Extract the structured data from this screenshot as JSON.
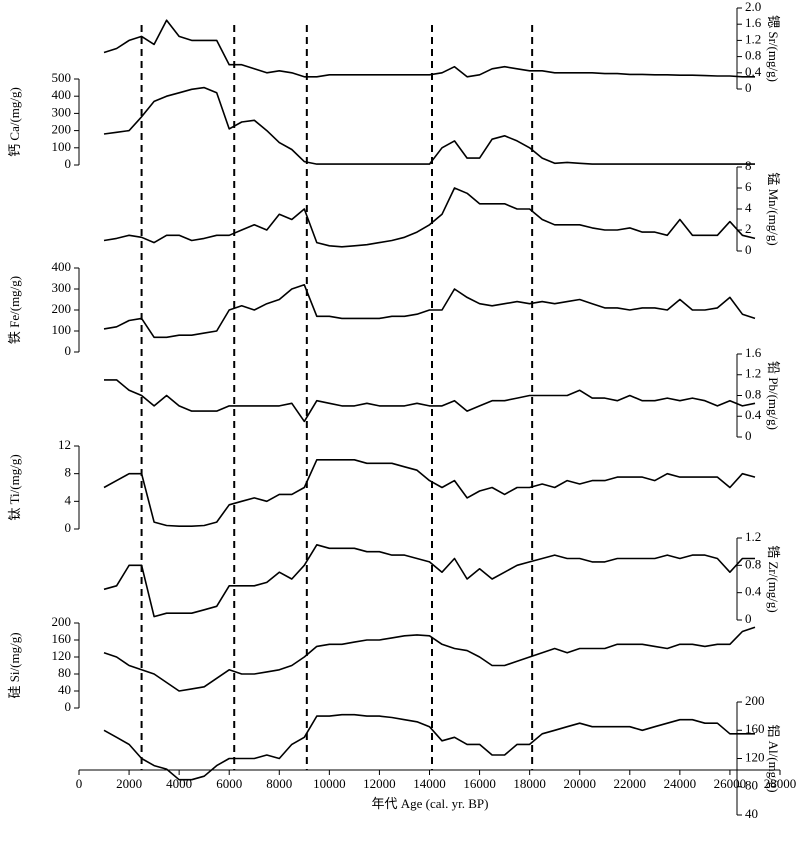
{
  "chart_data": {
    "type": "line",
    "xlabel": "年代  Age (cal. yr. BP)",
    "xlim": [
      0,
      28000
    ],
    "xticks": [
      0,
      2000,
      4000,
      6000,
      8000,
      10000,
      12000,
      14000,
      16000,
      18000,
      20000,
      22000,
      24000,
      26000,
      28000
    ],
    "dashed_lines": [
      2500,
      6200,
      9100,
      14100,
      18100
    ],
    "x": [
      1000,
      1500,
      2000,
      2500,
      3000,
      3500,
      4000,
      4500,
      5000,
      5500,
      6000,
      6500,
      7000,
      7500,
      8000,
      8500,
      9000,
      9500,
      10000,
      10500,
      11000,
      11500,
      12000,
      12500,
      13000,
      13500,
      14000,
      14500,
      15000,
      15500,
      16000,
      16500,
      17000,
      17500,
      18000,
      18500,
      19000,
      19500,
      20000,
      20500,
      21000,
      21500,
      22000,
      22500,
      23000,
      23500,
      24000,
      24500,
      25000,
      25500,
      26000,
      26500,
      27000
    ],
    "series": [
      {
        "name": "锶 Sr/(mg/g)",
        "side": "right",
        "color": "#000000",
        "ylim": [
          0,
          2
        ],
        "yticks": [
          0,
          0.4,
          0.8,
          1.2,
          1.6,
          {
            "value": 2,
            "label": "2.0"
          }
        ],
        "values": [
          0.9,
          1.0,
          1.2,
          1.3,
          1.1,
          1.7,
          1.3,
          1.2,
          1.2,
          1.2,
          0.6,
          0.6,
          0.5,
          0.4,
          0.45,
          0.4,
          0.3,
          0.3,
          0.35,
          0.35,
          0.35,
          0.35,
          0.35,
          0.35,
          0.35,
          0.35,
          0.35,
          0.4,
          0.55,
          0.3,
          0.35,
          0.5,
          0.55,
          0.5,
          0.45,
          0.45,
          0.4,
          0.4,
          0.4,
          0.4,
          0.38,
          0.38,
          0.36,
          0.36,
          0.35,
          0.35,
          0.34,
          0.34,
          0.33,
          0.32,
          0.32,
          0.3,
          0.3
        ]
      },
      {
        "name": "钙 Ca/(mg/g)",
        "side": "left",
        "color": "#000000",
        "ylim": [
          0,
          500
        ],
        "yticks": [
          0,
          100,
          200,
          300,
          400,
          500
        ],
        "values": [
          180,
          190,
          200,
          280,
          370,
          400,
          420,
          440,
          450,
          420,
          210,
          250,
          260,
          200,
          130,
          90,
          20,
          5,
          5,
          5,
          5,
          5,
          5,
          5,
          5,
          5,
          5,
          100,
          140,
          40,
          40,
          150,
          170,
          140,
          100,
          40,
          10,
          15,
          10,
          5,
          5,
          5,
          5,
          5,
          5,
          5,
          5,
          5,
          5,
          5,
          5,
          5,
          5
        ]
      },
      {
        "name": "锰 Mn/(mg/g)",
        "side": "right",
        "color": "#000000",
        "ylim": [
          0,
          8
        ],
        "yticks": [
          0,
          2,
          4,
          6,
          8
        ],
        "values": [
          1,
          1.2,
          1.5,
          1.3,
          0.8,
          1.5,
          1.5,
          1,
          1.2,
          1.5,
          1.5,
          2,
          2.5,
          2,
          3.5,
          3,
          4,
          0.8,
          0.5,
          0.4,
          0.5,
          0.6,
          0.8,
          1,
          1.3,
          1.8,
          2.5,
          3.5,
          6,
          5.5,
          4.5,
          4.5,
          4.5,
          4,
          4,
          3,
          2.5,
          2.5,
          2.5,
          2.2,
          2,
          2,
          2.2,
          1.8,
          1.8,
          1.5,
          3,
          1.5,
          1.5,
          1.5,
          2.8,
          1.5,
          1.2
        ]
      },
      {
        "name": "铁 Fe/(mg/g)",
        "side": "left",
        "color": "#000000",
        "ylim": [
          0,
          400
        ],
        "yticks": [
          0,
          100,
          200,
          300,
          400
        ],
        "values": [
          110,
          120,
          150,
          160,
          70,
          70,
          80,
          80,
          90,
          100,
          200,
          220,
          200,
          230,
          250,
          300,
          320,
          170,
          170,
          160,
          160,
          160,
          160,
          170,
          170,
          180,
          200,
          200,
          300,
          260,
          230,
          220,
          230,
          240,
          230,
          240,
          230,
          240,
          250,
          230,
          210,
          210,
          200,
          210,
          210,
          200,
          250,
          200,
          200,
          210,
          260,
          180,
          160
        ]
      },
      {
        "name": "铅 Pb/(mg/g)",
        "side": "right",
        "color": "#000000",
        "ylim": [
          0,
          1.6
        ],
        "yticks": [
          0,
          0.4,
          0.8,
          1.2,
          1.6
        ],
        "values": [
          1.1,
          1.1,
          0.9,
          0.8,
          0.6,
          0.8,
          0.6,
          0.5,
          0.5,
          0.5,
          0.6,
          0.6,
          0.6,
          0.6,
          0.6,
          0.65,
          0.3,
          0.7,
          0.65,
          0.6,
          0.6,
          0.65,
          0.6,
          0.6,
          0.6,
          0.65,
          0.6,
          0.6,
          0.7,
          0.5,
          0.6,
          0.7,
          0.7,
          0.75,
          0.8,
          0.8,
          0.8,
          0.8,
          0.9,
          0.75,
          0.75,
          0.7,
          0.8,
          0.7,
          0.7,
          0.75,
          0.7,
          0.75,
          0.7,
          0.6,
          0.7,
          0.6,
          0.65
        ]
      },
      {
        "name": "钛 Ti/(mg/g)",
        "side": "left",
        "color": "#000000",
        "ylim": [
          0,
          12
        ],
        "yticks": [
          0,
          4,
          8,
          12
        ],
        "values": [
          6,
          7,
          8,
          8,
          1,
          0.5,
          0.4,
          0.4,
          0.5,
          1,
          3.5,
          4,
          4.5,
          4,
          5,
          5,
          6,
          10,
          10,
          10,
          10,
          9.5,
          9.5,
          9.5,
          9,
          8.5,
          7,
          6,
          7,
          4.5,
          5.5,
          6,
          5,
          6,
          6,
          6.5,
          6,
          7,
          6.5,
          7,
          7,
          7.5,
          7.5,
          7.5,
          7,
          8,
          7.5,
          7.5,
          7.5,
          7.5,
          6,
          8,
          7.5
        ]
      },
      {
        "name": "锆 Zr/(mg/g)",
        "side": "right",
        "color": "#000000",
        "ylim": [
          0,
          1.2
        ],
        "yticks": [
          0,
          0.4,
          0.8,
          1.2
        ],
        "values": [
          0.45,
          0.5,
          0.8,
          0.8,
          0.05,
          0.1,
          0.1,
          0.1,
          0.15,
          0.2,
          0.5,
          0.5,
          0.5,
          0.55,
          0.7,
          0.6,
          0.8,
          1.1,
          1.05,
          1.05,
          1.05,
          1.0,
          1.0,
          0.95,
          0.95,
          0.9,
          0.85,
          0.7,
          0.9,
          0.6,
          0.75,
          0.6,
          0.7,
          0.8,
          0.85,
          0.9,
          0.95,
          0.9,
          0.9,
          0.85,
          0.85,
          0.9,
          0.9,
          0.9,
          0.9,
          0.95,
          0.9,
          0.95,
          0.95,
          0.9,
          0.7,
          0.9,
          0.9
        ]
      },
      {
        "name": "硅 Si/(mg/g)",
        "side": "left",
        "color": "#000000",
        "ylim": [
          0,
          200
        ],
        "yticks": [
          0,
          40,
          80,
          120,
          160,
          200
        ],
        "values": [
          130,
          120,
          100,
          90,
          80,
          60,
          40,
          45,
          50,
          70,
          90,
          80,
          80,
          85,
          90,
          100,
          120,
          145,
          150,
          150,
          155,
          160,
          160,
          165,
          170,
          172,
          170,
          150,
          140,
          135,
          120,
          100,
          100,
          110,
          120,
          130,
          140,
          130,
          140,
          140,
          140,
          150,
          150,
          150,
          145,
          140,
          150,
          150,
          145,
          150,
          150,
          180,
          190
        ]
      },
      {
        "name": "铝 Al/(mg/g)",
        "side": "right",
        "color": "#000000",
        "ylim": [
          40,
          200
        ],
        "yticks": [
          40,
          80,
          120,
          160,
          200
        ],
        "values": [
          160,
          150,
          140,
          120,
          110,
          105,
          90,
          90,
          95,
          110,
          120,
          120,
          120,
          125,
          120,
          140,
          150,
          180,
          180,
          182,
          182,
          180,
          180,
          178,
          175,
          172,
          165,
          145,
          150,
          140,
          140,
          125,
          125,
          140,
          140,
          155,
          160,
          165,
          170,
          165,
          165,
          165,
          165,
          160,
          165,
          170,
          175,
          175,
          170,
          170,
          155,
          155,
          155
        ]
      }
    ]
  }
}
